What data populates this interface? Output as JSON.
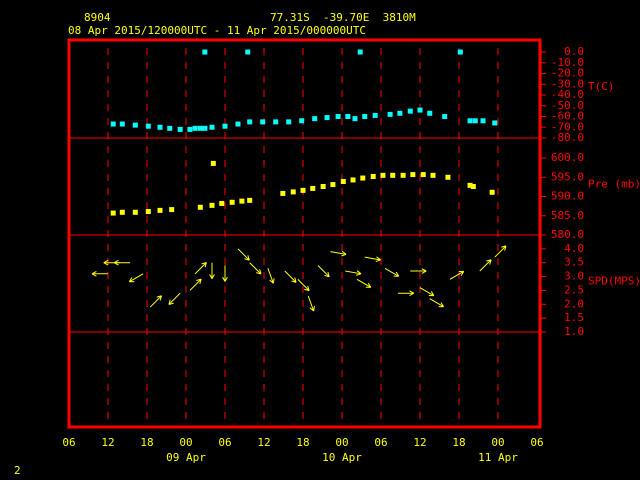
{
  "header": {
    "station": "8904",
    "location": "77.31S  -39.70E  3810M",
    "period": "08 Apr 2015/120000UTC - 11 Apr 2015/000000UTC",
    "page_number": "2"
  },
  "x_axis": {
    "xlim": [
      0,
      72
    ],
    "xticks": [
      {
        "value": 0,
        "label": "06"
      },
      {
        "value": 6,
        "label": "12"
      },
      {
        "value": 12,
        "label": "18"
      },
      {
        "value": 18,
        "label": "00"
      },
      {
        "value": 24,
        "label": "06"
      },
      {
        "value": 30,
        "label": "12"
      },
      {
        "value": 36,
        "label": "18"
      },
      {
        "value": 42,
        "label": "00"
      },
      {
        "value": 48,
        "label": "06"
      },
      {
        "value": 54,
        "label": "12"
      },
      {
        "value": 60,
        "label": "18"
      },
      {
        "value": 66,
        "label": "00"
      },
      {
        "value": 72,
        "label": "06"
      }
    ],
    "date_labels": [
      {
        "value": 18,
        "label": "09 Apr"
      },
      {
        "value": 42,
        "label": "10 Apr"
      },
      {
        "value": 66,
        "label": "11 Apr"
      }
    ]
  },
  "chart_data": [
    {
      "type": "scatter",
      "ylabel": "T(C)",
      "color": "#00ffff",
      "ylim": [
        -80,
        11.2
      ],
      "yticks": [
        {
          "value": 0,
          "label": "0.0"
        },
        {
          "value": -10,
          "label": "-10.0"
        },
        {
          "value": -20,
          "label": "-20.0"
        },
        {
          "value": -30,
          "label": "-30.0"
        },
        {
          "value": -40,
          "label": "-40.0"
        },
        {
          "value": -50,
          "label": "-50.0"
        },
        {
          "value": -60,
          "label": "-60.0"
        },
        {
          "value": -70,
          "label": "-70.0"
        },
        {
          "value": -80,
          "label": "-80.0"
        }
      ],
      "x": [
        6.8,
        8.2,
        10.2,
        12.2,
        14.0,
        15.5,
        17.1,
        18.6,
        19.4,
        20.2,
        20.9,
        20.9,
        22.0,
        24.0,
        26.0,
        27.5,
        27.8,
        29.8,
        31.8,
        33.8,
        35.8,
        37.8,
        39.7,
        41.4,
        42.9,
        44.0,
        44.8,
        45.5,
        47.1,
        49.4,
        50.9,
        52.5,
        54.0,
        55.5,
        57.8,
        60.2,
        61.7,
        62.5,
        63.7,
        65.5
      ],
      "values": [
        -67,
        -67,
        -68,
        -69,
        -70,
        -71,
        -72,
        -72,
        -71,
        -71,
        -71,
        0,
        -70,
        -69,
        -67,
        0,
        -65,
        -65,
        -65,
        -65,
        -64,
        -62,
        -61,
        -60,
        -60,
        -62,
        0,
        -60,
        -59,
        -58,
        -57,
        -55,
        -54,
        -57,
        -60,
        0,
        -64,
        -64,
        -64,
        -66
      ]
    },
    {
      "type": "scatter",
      "ylabel": "Pre (mb)",
      "color": "#ffff00",
      "ylim": [
        580,
        605.2
      ],
      "yticks": [
        {
          "value": 600,
          "label": "600.0"
        },
        {
          "value": 595,
          "label": "595.0"
        },
        {
          "value": 590,
          "label": "590.0"
        },
        {
          "value": 585,
          "label": "585.0"
        },
        {
          "value": 580,
          "label": "580.0"
        }
      ],
      "x": [
        6.8,
        8.2,
        10.2,
        12.2,
        14.0,
        15.8,
        20.2,
        22.0,
        22.2,
        23.5,
        25.1,
        26.6,
        27.8,
        32.9,
        34.5,
        36.0,
        37.5,
        39.1,
        40.6,
        42.2,
        43.7,
        45.2,
        46.8,
        48.3,
        49.8,
        51.4,
        52.9,
        54.5,
        56.0,
        58.3,
        61.7,
        62.2,
        65.1
      ],
      "values": [
        585.7,
        585.9,
        585.9,
        586.1,
        586.4,
        586.6,
        587.2,
        587.7,
        598.6,
        588.2,
        588.5,
        588.8,
        589.0,
        590.8,
        591.2,
        591.6,
        592.1,
        592.6,
        593.1,
        593.9,
        594.3,
        594.8,
        595.2,
        595.5,
        595.5,
        595.5,
        595.7,
        595.7,
        595.5,
        595.0,
        592.9,
        592.6,
        591.1
      ]
    },
    {
      "type": "wind",
      "ylabel": "SPD(MPS)",
      "color": "#ffff00",
      "ylim": [
        1.0,
        4.5
      ],
      "yticks": [
        {
          "value": 4,
          "label": "4.0"
        },
        {
          "value": 3.5,
          "label": "3.5"
        },
        {
          "value": 3,
          "label": "3.0"
        },
        {
          "value": 2.5,
          "label": "2.5"
        },
        {
          "value": 2,
          "label": "2.0"
        },
        {
          "value": 1.5,
          "label": "1.5"
        },
        {
          "value": 1,
          "label": "1.0"
        }
      ],
      "x": [
        6.0,
        7.8,
        9.4,
        11.4,
        12.5,
        17.1,
        18.6,
        19.4,
        22.0,
        24.0,
        26.0,
        27.8,
        30.6,
        33.2,
        35.2,
        36.8,
        38.3,
        40.2,
        42.5,
        44.3,
        45.5,
        48.6,
        50.6,
        52.5,
        54.0,
        55.5,
        58.6,
        63.2,
        65.5
      ],
      "values": [
        3.1,
        3.5,
        3.5,
        3.1,
        1.9,
        2.4,
        2.5,
        3.1,
        3.5,
        3.4,
        4.0,
        3.5,
        3.3,
        3.2,
        2.9,
        2.3,
        3.4,
        3.9,
        3.2,
        2.9,
        3.7,
        3.3,
        2.4,
        3.2,
        2.6,
        2.2,
        2.9,
        3.2,
        3.7
      ],
      "directions": [
        270,
        270,
        270,
        240,
        45,
        225,
        45,
        45,
        180,
        180,
        135,
        135,
        160,
        135,
        135,
        160,
        135,
        100,
        100,
        120,
        100,
        120,
        90,
        90,
        120,
        120,
        60,
        45,
        45
      ]
    }
  ]
}
